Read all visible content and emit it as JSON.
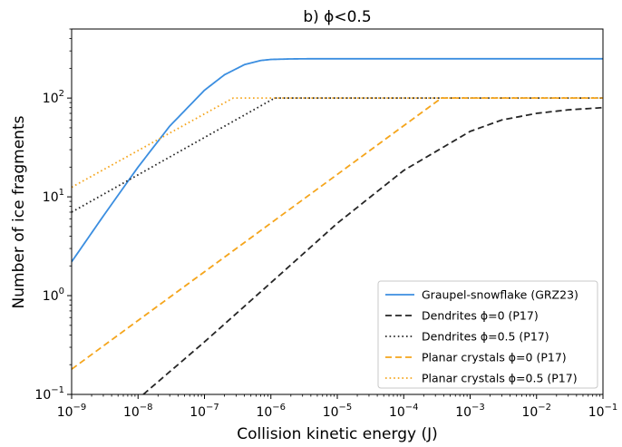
{
  "chart_data": {
    "type": "line",
    "title": "b) ϕ<0.5",
    "xlabel": "Collision kinetic energy (J)",
    "ylabel": "Number of ice fragments",
    "xscale": "log",
    "yscale": "log",
    "xlim": [
      1e-09,
      0.1
    ],
    "ylim": [
      0.1,
      500
    ],
    "grid": false,
    "legend_position": "lower-right",
    "x_ticks": [
      {
        "base": "10",
        "exp": "−9",
        "value": 1e-09
      },
      {
        "base": "10",
        "exp": "−8",
        "value": 1e-08
      },
      {
        "base": "10",
        "exp": "−7",
        "value": 1e-07
      },
      {
        "base": "10",
        "exp": "−6",
        "value": 1e-06
      },
      {
        "base": "10",
        "exp": "−5",
        "value": 1e-05
      },
      {
        "base": "10",
        "exp": "−4",
        "value": 0.0001
      },
      {
        "base": "10",
        "exp": "−3",
        "value": 0.001
      },
      {
        "base": "10",
        "exp": "−2",
        "value": 0.01
      },
      {
        "base": "10",
        "exp": "−1",
        "value": 0.1
      }
    ],
    "y_ticks": [
      {
        "base": "10",
        "exp": "−1",
        "value": 0.1
      },
      {
        "base": "10",
        "exp": "0",
        "value": 1
      },
      {
        "base": "10",
        "exp": "1",
        "value": 10
      },
      {
        "base": "10",
        "exp": "2",
        "value": 100
      }
    ],
    "series": [
      {
        "name": "Graupel-snowflake (GRZ23)",
        "color": "#3b8ee0",
        "style": "solid",
        "x": [
          1e-09,
          3e-09,
          1e-08,
          3e-08,
          1e-07,
          2e-07,
          4e-07,
          7e-07,
          1e-06,
          2e-06,
          4e-06,
          1e-05,
          0.0001,
          0.001,
          0.01,
          0.1
        ],
        "y": [
          2.2,
          6.4,
          20,
          52,
          120,
          172,
          218,
          240,
          246,
          249,
          250,
          250,
          250,
          250,
          250,
          250
        ]
      },
      {
        "name": "Dendrites ϕ=0 (P17)",
        "color": "#262626",
        "style": "dashed",
        "x": [
          1.2e-08,
          1e-07,
          1e-06,
          1e-05,
          0.0001,
          0.001,
          0.003,
          0.01,
          0.03,
          0.1
        ],
        "y": [
          0.1,
          0.34,
          1.35,
          5.4,
          18.5,
          46,
          60,
          70,
          76,
          80
        ]
      },
      {
        "name": "Dendrites ϕ=0.5 (P17)",
        "color": "#262626",
        "style": "dotted",
        "x": [
          1e-09,
          1.14e-06,
          1e-05,
          0.0001,
          0.001,
          0.01,
          0.1
        ],
        "y": [
          7,
          100,
          100,
          100,
          100,
          100,
          100
        ]
      },
      {
        "name": "Planar crystals ϕ=0 (P17)",
        "color": "#f5a51c",
        "style": "dashed",
        "x": [
          1e-09,
          0.00037,
          0.001,
          0.01,
          0.1
        ],
        "y": [
          0.18,
          100,
          100,
          100,
          100
        ]
      },
      {
        "name": "Planar crystals ϕ=0.5 (P17)",
        "color": "#f5a51c",
        "style": "dotted",
        "x": [
          1e-09,
          2.7e-07,
          1e-06,
          1e-05,
          0.0001,
          0.001,
          0.01,
          0.1
        ],
        "y": [
          12.5,
          100,
          100,
          100,
          100,
          100,
          100,
          100
        ]
      }
    ]
  }
}
